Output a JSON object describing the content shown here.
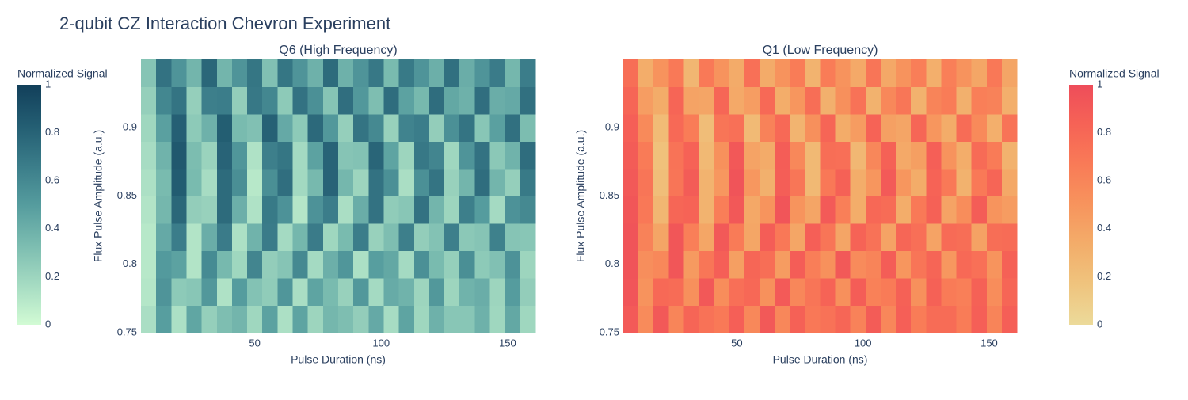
{
  "title": "2-qubit CZ Interaction Chevron Experiment",
  "chart_data": [
    {
      "type": "heatmap",
      "title": "Q6 (High Frequency)",
      "x_label": "Pulse Duration (ns)",
      "y_label": "Flux Pulse Amplitude (a.u.)",
      "xlim": [
        5,
        161
      ],
      "ylim": [
        0.75,
        0.95
      ],
      "xticks": [
        50,
        100,
        150
      ],
      "yticks": [
        0.75,
        0.8,
        0.85,
        0.9
      ],
      "zlim": [
        0,
        1
      ],
      "colorscale": [
        "#d2fbd4",
        "#a5dbc2",
        "#7bbcb0",
        "#559c9e",
        "#3a7c89",
        "#235d72",
        "#123f5a"
      ],
      "colorbar": {
        "title": "Normalized Signal",
        "ticks": [
          0,
          0.2,
          0.4,
          0.6,
          0.8,
          1
        ],
        "side": "left"
      },
      "x": [
        8,
        14,
        20,
        26,
        32,
        38,
        44,
        50,
        56,
        62,
        68,
        74,
        80,
        86,
        92,
        98,
        104,
        110,
        116,
        122,
        128,
        134,
        140,
        146,
        152,
        158
      ],
      "y": [
        0.76,
        0.78,
        0.8,
        0.82,
        0.84,
        0.86,
        0.88,
        0.9,
        0.92,
        0.94
      ],
      "z": [
        [
          0.15,
          0.49,
          0.14,
          0.45,
          0.23,
          0.32,
          0.37,
          0.19,
          0.47,
          0.14,
          0.46,
          0.2,
          0.36,
          0.32,
          0.24,
          0.43,
          0.16,
          0.46,
          0.19,
          0.39,
          0.28,
          0.28,
          0.39,
          0.19,
          0.44,
          0.19
        ],
        [
          0.11,
          0.54,
          0.26,
          0.28,
          0.52,
          0.13,
          0.5,
          0.3,
          0.25,
          0.53,
          0.15,
          0.46,
          0.34,
          0.22,
          0.52,
          0.17,
          0.42,
          0.38,
          0.2,
          0.52,
          0.2,
          0.38,
          0.41,
          0.2,
          0.5,
          0.24
        ],
        [
          0.1,
          0.51,
          0.47,
          0.12,
          0.59,
          0.35,
          0.19,
          0.62,
          0.24,
          0.29,
          0.6,
          0.17,
          0.4,
          0.53,
          0.14,
          0.49,
          0.44,
          0.17,
          0.56,
          0.34,
          0.23,
          0.57,
          0.26,
          0.31,
          0.55,
          0.2
        ],
        [
          0.1,
          0.43,
          0.66,
          0.12,
          0.41,
          0.67,
          0.14,
          0.38,
          0.67,
          0.17,
          0.36,
          0.67,
          0.19,
          0.34,
          0.66,
          0.22,
          0.32,
          0.65,
          0.24,
          0.3,
          0.65,
          0.27,
          0.29,
          0.64,
          0.29,
          0.28
        ],
        [
          0.12,
          0.36,
          0.78,
          0.24,
          0.22,
          0.76,
          0.4,
          0.13,
          0.68,
          0.55,
          0.11,
          0.55,
          0.66,
          0.15,
          0.41,
          0.72,
          0.25,
          0.28,
          0.72,
          0.37,
          0.2,
          0.65,
          0.5,
          0.17,
          0.55,
          0.6
        ],
        [
          0.14,
          0.34,
          0.84,
          0.34,
          0.16,
          0.76,
          0.57,
          0.1,
          0.57,
          0.74,
          0.18,
          0.35,
          0.8,
          0.36,
          0.2,
          0.72,
          0.56,
          0.15,
          0.56,
          0.71,
          0.22,
          0.37,
          0.75,
          0.37,
          0.23,
          0.68
        ],
        [
          0.16,
          0.38,
          0.86,
          0.33,
          0.21,
          0.8,
          0.53,
          0.13,
          0.65,
          0.7,
          0.17,
          0.47,
          0.8,
          0.29,
          0.3,
          0.79,
          0.46,
          0.2,
          0.69,
          0.62,
          0.19,
          0.54,
          0.72,
          0.27,
          0.38,
          0.75
        ],
        [
          0.19,
          0.48,
          0.82,
          0.26,
          0.39,
          0.83,
          0.34,
          0.31,
          0.81,
          0.43,
          0.26,
          0.77,
          0.52,
          0.23,
          0.71,
          0.6,
          0.22,
          0.63,
          0.66,
          0.24,
          0.56,
          0.71,
          0.28,
          0.48,
          0.73,
          0.33
        ],
        [
          0.23,
          0.61,
          0.71,
          0.23,
          0.65,
          0.66,
          0.24,
          0.69,
          0.61,
          0.26,
          0.72,
          0.56,
          0.29,
          0.74,
          0.52,
          0.32,
          0.75,
          0.47,
          0.35,
          0.75,
          0.44,
          0.39,
          0.74,
          0.41,
          0.43,
          0.73
        ],
        [
          0.29,
          0.72,
          0.54,
          0.37,
          0.78,
          0.37,
          0.54,
          0.7,
          0.31,
          0.7,
          0.54,
          0.39,
          0.76,
          0.39,
          0.54,
          0.69,
          0.34,
          0.68,
          0.54,
          0.4,
          0.73,
          0.41,
          0.54,
          0.67,
          0.36,
          0.66
        ]
      ]
    },
    {
      "type": "heatmap",
      "title": "Q1 (Low Frequency)",
      "x_label": "Pulse Duration (ns)",
      "y_label": "Flux Pulse Amplitude (a.u.)",
      "xlim": [
        5,
        161
      ],
      "ylim": [
        0.75,
        0.95
      ],
      "xticks": [
        50,
        100,
        150
      ],
      "yticks": [
        0.75,
        0.8,
        0.85,
        0.9
      ],
      "zlim": [
        0,
        1
      ],
      "colorscale": [
        "#ecda9a",
        "#efc47e",
        "#f3ad6a",
        "#f7945d",
        "#f97b57",
        "#f66356",
        "#ee4d5a"
      ],
      "colorbar": {
        "title": "Normalized Signal",
        "ticks": [
          0,
          0.2,
          0.4,
          0.6,
          0.8,
          1
        ],
        "side": "right"
      },
      "x": [
        8,
        14,
        20,
        26,
        32,
        38,
        44,
        50,
        56,
        62,
        68,
        74,
        80,
        86,
        92,
        98,
        104,
        110,
        116,
        122,
        128,
        134,
        140,
        146,
        152,
        158
      ],
      "y": [
        0.76,
        0.78,
        0.8,
        0.82,
        0.84,
        0.86,
        0.88,
        0.9,
        0.92,
        0.94
      ],
      "z": [
        [
          0.9,
          0.56,
          0.91,
          0.6,
          0.82,
          0.73,
          0.68,
          0.86,
          0.58,
          0.91,
          0.59,
          0.85,
          0.69,
          0.73,
          0.81,
          0.62,
          0.89,
          0.59,
          0.86,
          0.66,
          0.77,
          0.77,
          0.66,
          0.86,
          0.61,
          0.86
        ],
        [
          0.94,
          0.51,
          0.79,
          0.77,
          0.53,
          0.92,
          0.55,
          0.75,
          0.8,
          0.52,
          0.9,
          0.59,
          0.71,
          0.83,
          0.53,
          0.88,
          0.63,
          0.67,
          0.85,
          0.53,
          0.85,
          0.67,
          0.64,
          0.85,
          0.55,
          0.81
        ],
        [
          0.95,
          0.54,
          0.58,
          0.93,
          0.46,
          0.7,
          0.86,
          0.43,
          0.81,
          0.76,
          0.45,
          0.88,
          0.65,
          0.52,
          0.91,
          0.56,
          0.61,
          0.88,
          0.49,
          0.71,
          0.82,
          0.48,
          0.79,
          0.74,
          0.5,
          0.85
        ],
        [
          0.95,
          0.62,
          0.39,
          0.93,
          0.64,
          0.38,
          0.91,
          0.67,
          0.38,
          0.88,
          0.69,
          0.38,
          0.86,
          0.71,
          0.39,
          0.83,
          0.73,
          0.4,
          0.81,
          0.75,
          0.4,
          0.78,
          0.76,
          0.41,
          0.76,
          0.77
        ],
        [
          0.93,
          0.69,
          0.27,
          0.81,
          0.83,
          0.29,
          0.65,
          0.92,
          0.37,
          0.5,
          0.94,
          0.5,
          0.39,
          0.9,
          0.64,
          0.33,
          0.8,
          0.77,
          0.33,
          0.68,
          0.85,
          0.4,
          0.55,
          0.88,
          0.5,
          0.45
        ],
        [
          0.91,
          0.71,
          0.21,
          0.71,
          0.89,
          0.29,
          0.48,
          0.95,
          0.48,
          0.31,
          0.87,
          0.7,
          0.25,
          0.69,
          0.85,
          0.33,
          0.49,
          0.9,
          0.49,
          0.34,
          0.83,
          0.68,
          0.3,
          0.68,
          0.82,
          0.37
        ],
        [
          0.89,
          0.67,
          0.19,
          0.72,
          0.84,
          0.25,
          0.52,
          0.92,
          0.4,
          0.35,
          0.88,
          0.58,
          0.25,
          0.76,
          0.75,
          0.26,
          0.59,
          0.85,
          0.36,
          0.43,
          0.86,
          0.51,
          0.33,
          0.78,
          0.67,
          0.3
        ],
        [
          0.86,
          0.57,
          0.23,
          0.79,
          0.66,
          0.22,
          0.71,
          0.74,
          0.24,
          0.62,
          0.79,
          0.28,
          0.53,
          0.82,
          0.34,
          0.45,
          0.83,
          0.42,
          0.39,
          0.81,
          0.49,
          0.34,
          0.77,
          0.57,
          0.32,
          0.72
        ],
        [
          0.82,
          0.44,
          0.34,
          0.82,
          0.4,
          0.39,
          0.81,
          0.36,
          0.44,
          0.79,
          0.33,
          0.49,
          0.76,
          0.31,
          0.53,
          0.73,
          0.3,
          0.58,
          0.7,
          0.3,
          0.61,
          0.66,
          0.31,
          0.64,
          0.62,
          0.32
        ],
        [
          0.76,
          0.33,
          0.51,
          0.68,
          0.27,
          0.68,
          0.51,
          0.35,
          0.74,
          0.35,
          0.51,
          0.66,
          0.29,
          0.66,
          0.51,
          0.36,
          0.71,
          0.37,
          0.51,
          0.65,
          0.32,
          0.64,
          0.51,
          0.38,
          0.69,
          0.39
        ]
      ]
    }
  ]
}
